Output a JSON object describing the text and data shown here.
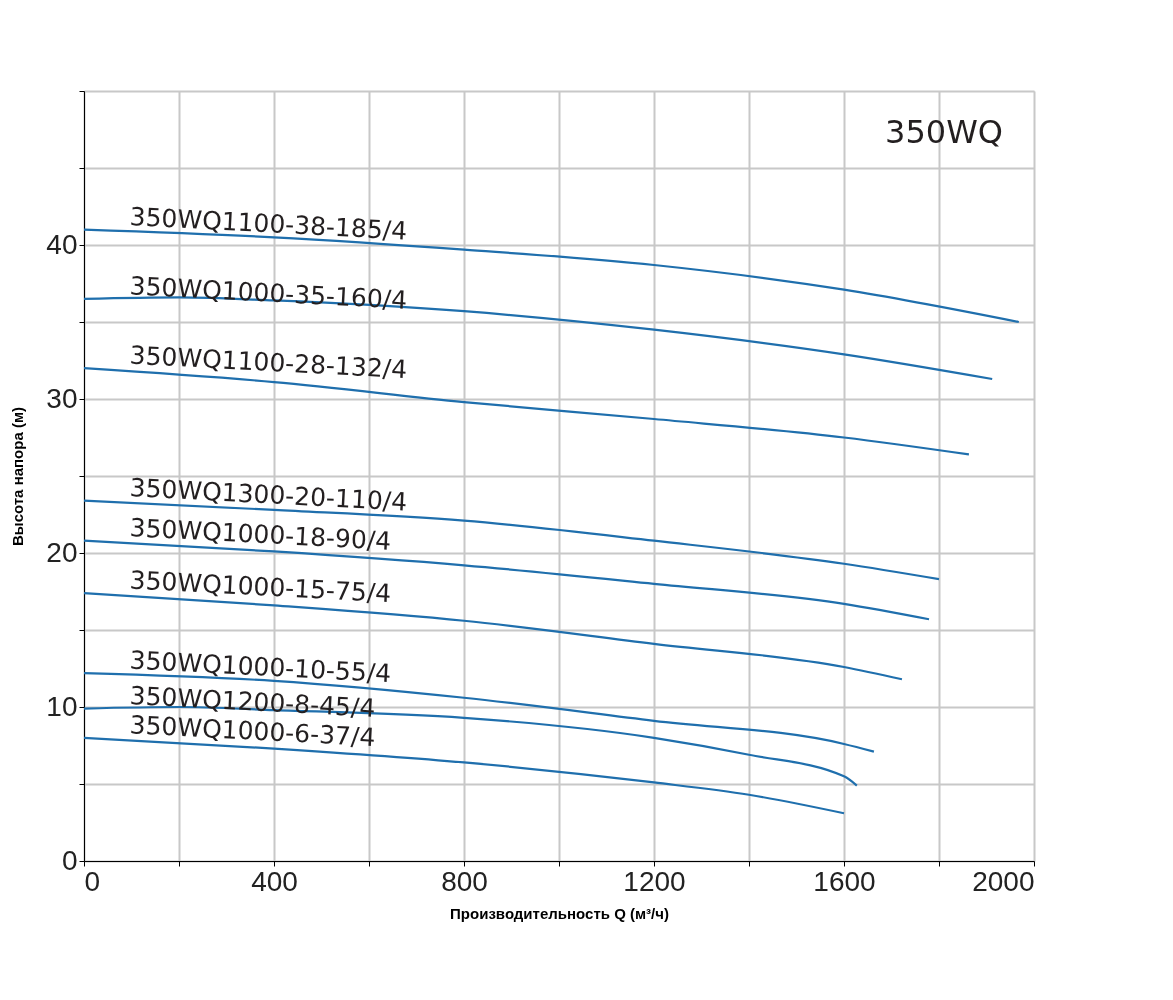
{
  "chart_data": {
    "type": "line",
    "title": "350WQ",
    "xlabel": "Производительность Q (м³/ч)",
    "ylabel": "Высота напора (м)",
    "xlim": [
      0,
      2000
    ],
    "ylim": [
      0,
      50
    ],
    "xticks": [
      0,
      {
        "value": 200,
        "label": null
      },
      400,
      {
        "value": 600,
        "label": null
      },
      800,
      {
        "value": 1000,
        "label": null
      },
      1200,
      {
        "value": 1400,
        "label": null
      },
      1600,
      {
        "value": 1800,
        "label": null
      },
      2000
    ],
    "yticks": [
      0,
      {
        "value": 5,
        "label": null
      },
      10,
      {
        "value": 15,
        "label": null
      },
      20,
      {
        "value": 25,
        "label": null
      },
      30,
      {
        "value": 35,
        "label": null
      },
      40,
      {
        "value": 45,
        "label": null
      },
      {
        "value": 50,
        "label": null
      }
    ],
    "grid": true,
    "legend": false,
    "series": [
      {
        "name": "350WQ1100-38-185/4",
        "color": "#1f6fad",
        "x": [
          0,
          400,
          800,
          1200,
          1600,
          1968
        ],
        "values": [
          41.0,
          40.5,
          39.7,
          38.7,
          37.1,
          35.0
        ]
      },
      {
        "name": "350WQ1000-35-160/4",
        "color": "#1f6fad",
        "x": [
          0,
          200,
          400,
          800,
          1200,
          1600,
          1912
        ],
        "values": [
          36.5,
          36.6,
          36.4,
          35.7,
          34.5,
          32.9,
          31.3
        ]
      },
      {
        "name": "350WQ1100-28-132/4",
        "color": "#1f6fad",
        "x": [
          0,
          400,
          800,
          1200,
          1600,
          1863
        ],
        "values": [
          32.0,
          31.1,
          29.8,
          28.7,
          27.5,
          26.4
        ]
      },
      {
        "name": "350WQ1300-20-110/4",
        "color": "#1f6fad",
        "x": [
          0,
          400,
          800,
          1200,
          1600,
          1800
        ],
        "values": [
          23.4,
          22.8,
          22.1,
          20.8,
          19.3,
          18.3
        ]
      },
      {
        "name": "350WQ1000-18-90/4",
        "color": "#1f6fad",
        "x": [
          0,
          400,
          800,
          1200,
          1600,
          1779
        ],
        "values": [
          20.8,
          20.1,
          19.2,
          18.0,
          16.7,
          15.7
        ]
      },
      {
        "name": "350WQ1000-15-75/4",
        "color": "#1f6fad",
        "x": [
          0,
          400,
          800,
          1200,
          1600,
          1722
        ],
        "values": [
          17.4,
          16.6,
          15.6,
          14.1,
          12.6,
          11.8
        ]
      },
      {
        "name": "350WQ1000-10-55/4",
        "color": "#1f6fad",
        "x": [
          0,
          400,
          800,
          1200,
          1600,
          1663
        ],
        "values": [
          12.2,
          11.7,
          10.6,
          9.1,
          7.6,
          7.1
        ]
      },
      {
        "name": "350WQ1200-8-45/4",
        "color": "#1f6fad",
        "x": [
          0,
          200,
          400,
          800,
          1200,
          1400,
          1600,
          1627
        ],
        "values": [
          9.9,
          10.0,
          9.8,
          9.3,
          8.0,
          6.9,
          5.5,
          4.9
        ]
      },
      {
        "name": "350WQ1000-6-37/4",
        "color": "#1f6fad",
        "x": [
          0,
          400,
          800,
          1200,
          1400,
          1600
        ],
        "values": [
          8.0,
          7.3,
          6.4,
          5.1,
          4.3,
          3.1
        ]
      }
    ]
  }
}
